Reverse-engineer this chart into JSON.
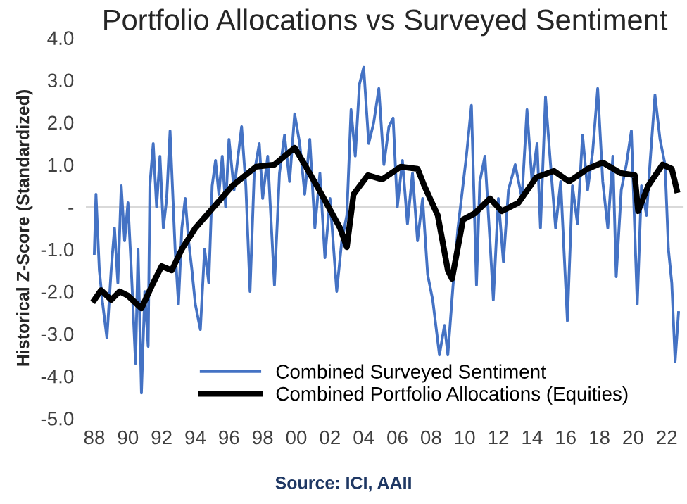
{
  "chart_data": {
    "type": "line",
    "title": "Portfolio Allocations vs Surveyed Sentiment",
    "ylabel": "Historical Z-Score (Standardized)",
    "annotations": [
      "Source: ICI, AAII"
    ],
    "series": [
      {
        "name": "Combined Surveyed Sentiment",
        "color": "#4472c4",
        "x": [
          1988.0,
          1988.1,
          1988.3,
          1988.5,
          1988.75,
          1989.0,
          1989.2,
          1989.4,
          1989.6,
          1989.8,
          1990.0,
          1990.2,
          1990.45,
          1990.6,
          1990.8,
          1991.0,
          1991.2,
          1991.3,
          1991.5,
          1991.7,
          1991.9,
          1992.1,
          1992.3,
          1992.5,
          1992.8,
          1993.0,
          1993.2,
          1993.4,
          1993.6,
          1993.8,
          1994.0,
          1994.3,
          1994.55,
          1994.8,
          1995.0,
          1995.2,
          1995.4,
          1995.6,
          1995.8,
          1996.0,
          1996.3,
          1996.75,
          1997.0,
          1997.25,
          1997.5,
          1997.8,
          1998.0,
          1998.3,
          1998.7,
          1999.0,
          1999.3,
          1999.6,
          1999.9,
          2000.2,
          2000.5,
          2000.8,
          2001.1,
          2001.4,
          2001.7,
          2002.0,
          2002.4,
          2002.7,
          2003.0,
          2003.25,
          2003.5,
          2003.75,
          2004.0,
          2004.3,
          2004.6,
          2004.9,
          2005.2,
          2005.5,
          2005.75,
          2006.0,
          2006.3,
          2006.6,
          2006.9,
          2007.2,
          2007.5,
          2007.8,
          2008.1,
          2008.5,
          2008.8,
          2009.0,
          2009.3,
          2009.6,
          2010.1,
          2010.4,
          2010.7,
          2010.9,
          2011.2,
          2011.5,
          2011.7,
          2012.0,
          2012.3,
          2012.6,
          2013.0,
          2013.4,
          2013.7,
          2014.0,
          2014.3,
          2014.5,
          2014.8,
          2015.1,
          2015.4,
          2015.7,
          2016.1,
          2016.4,
          2016.7,
          2017.0,
          2017.3,
          2017.6,
          2017.9,
          2018.2,
          2018.5,
          2018.8,
          2019.0,
          2019.3,
          2019.6,
          2019.9,
          2020.25,
          2020.5,
          2020.8,
          2021.0,
          2021.3,
          2021.6,
          2021.9,
          2022.1,
          2022.3,
          2022.5,
          2022.7
        ],
        "values": [
          -1.1,
          0.3,
          -1.5,
          -2.3,
          -3.1,
          -1.5,
          -0.5,
          -1.8,
          0.5,
          -0.8,
          0.1,
          -1.5,
          -3.7,
          -1.0,
          -4.4,
          -2.0,
          -3.3,
          0.5,
          1.5,
          0.0,
          1.2,
          -0.5,
          0.2,
          1.8,
          -1.0,
          -2.3,
          -0.5,
          0.2,
          -0.8,
          -1.5,
          -2.3,
          -2.9,
          -1.0,
          -1.8,
          0.5,
          1.1,
          0.3,
          1.2,
          0.0,
          1.6,
          0.4,
          1.9,
          0.5,
          -2.0,
          0.8,
          1.5,
          0.2,
          1.2,
          -1.85,
          0.8,
          1.7,
          0.6,
          2.2,
          1.5,
          0.3,
          1.6,
          -0.5,
          0.8,
          -1.2,
          0.2,
          -2.0,
          -0.8,
          -0.2,
          2.3,
          1.2,
          2.9,
          3.3,
          1.5,
          2.0,
          2.8,
          1.0,
          1.9,
          2.1,
          0.0,
          1.1,
          -0.4,
          0.8,
          -0.8,
          0.2,
          -1.6,
          -2.2,
          -3.5,
          -2.8,
          -3.5,
          -1.9,
          -0.5,
          1.2,
          2.4,
          -1.85,
          0.6,
          1.2,
          -0.8,
          -2.2,
          0.2,
          -1.3,
          0.4,
          1.0,
          0.2,
          2.3,
          0.6,
          1.5,
          -0.5,
          2.6,
          1.0,
          -0.5,
          0.6,
          -2.7,
          0.5,
          -0.4,
          1.7,
          0.4,
          1.3,
          2.8,
          0.6,
          -0.5,
          1.2,
          -1.65,
          0.4,
          1.0,
          1.8,
          -2.3,
          0.5,
          -0.2,
          1.0,
          2.65,
          1.6,
          1.0,
          -1.0,
          -1.8,
          -3.65,
          -2.5
        ]
      },
      {
        "name": "Combined Portfolio Allocations (Equities)",
        "color": "#000000",
        "x": [
          1988.0,
          1988.4,
          1989.0,
          1989.5,
          1990.0,
          1990.8,
          1991.5,
          1992.0,
          1992.6,
          1993.2,
          1994.0,
          1995.1,
          1996.2,
          1997.6,
          1998.7,
          1999.9,
          2000.5,
          2001.5,
          2002.6,
          2003.0,
          2003.4,
          2004.25,
          2005.1,
          2006.2,
          2007.2,
          2007.6,
          2008.4,
          2009.0,
          2009.25,
          2009.9,
          2010.6,
          2011.5,
          2012.2,
          2013.2,
          2014.25,
          2015.3,
          2016.2,
          2017.3,
          2018.2,
          2019.25,
          2020.1,
          2020.3,
          2020.9,
          2021.75,
          2022.3,
          2022.6
        ],
        "values": [
          -2.2,
          -1.97,
          -2.2,
          -2.0,
          -2.1,
          -2.4,
          -1.8,
          -1.4,
          -1.5,
          -1.0,
          -0.5,
          0.0,
          0.5,
          0.95,
          1.0,
          1.4,
          1.0,
          0.3,
          -0.5,
          -0.95,
          0.3,
          0.75,
          0.65,
          0.95,
          0.9,
          0.5,
          -0.2,
          -1.5,
          -1.7,
          -0.3,
          -0.15,
          0.2,
          -0.1,
          0.1,
          0.7,
          0.85,
          0.6,
          0.9,
          1.05,
          0.8,
          0.75,
          -0.1,
          0.5,
          1.0,
          0.9,
          0.4
        ]
      }
    ],
    "xlim": [
      1987.5,
      2023.0
    ],
    "xticks": [
      {
        "value": 1988,
        "label": "88"
      },
      {
        "value": 1990,
        "label": "90"
      },
      {
        "value": 1992,
        "label": "92"
      },
      {
        "value": 1994,
        "label": "94"
      },
      {
        "value": 1996,
        "label": "96"
      },
      {
        "value": 1998,
        "label": "98"
      },
      {
        "value": 2000,
        "label": "00"
      },
      {
        "value": 2002,
        "label": "02"
      },
      {
        "value": 2004,
        "label": "04"
      },
      {
        "value": 2006,
        "label": "06"
      },
      {
        "value": 2008,
        "label": "08"
      },
      {
        "value": 2010,
        "label": "10"
      },
      {
        "value": 2012,
        "label": "12"
      },
      {
        "value": 2014,
        "label": "14"
      },
      {
        "value": 2016,
        "label": "16"
      },
      {
        "value": 2018,
        "label": "18"
      },
      {
        "value": 2020,
        "label": "20"
      },
      {
        "value": 2022,
        "label": "22"
      }
    ],
    "ylim": [
      -5.0,
      4.0
    ],
    "yticks": [
      {
        "value": 4,
        "label": "4.0"
      },
      {
        "value": 3,
        "label": "3.0"
      },
      {
        "value": 2,
        "label": "2.0"
      },
      {
        "value": 1,
        "label": "1.0"
      },
      {
        "value": 0,
        "label": "-"
      },
      {
        "value": -1,
        "label": "-1.0"
      },
      {
        "value": -2,
        "label": "-2.0"
      },
      {
        "value": -3,
        "label": "-3.0"
      },
      {
        "value": -4,
        "label": "-4.0"
      },
      {
        "value": -5,
        "label": "-5.0"
      }
    ],
    "ref_lines": [
      {
        "axis": "y",
        "value": 0,
        "color": "#d9d9d9"
      }
    ],
    "legend": "bottom left",
    "grid": false
  }
}
